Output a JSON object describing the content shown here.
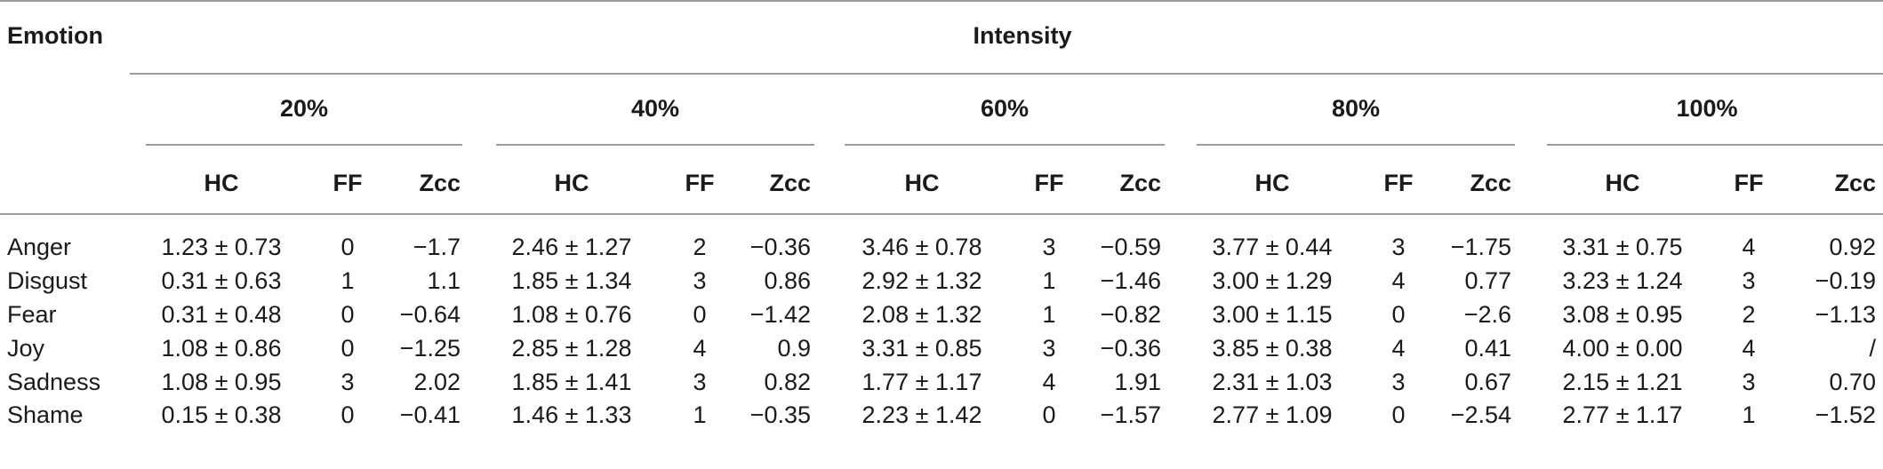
{
  "table": {
    "row_header": "Emotion",
    "super_header": "Intensity",
    "groups": [
      "20%",
      "40%",
      "60%",
      "80%",
      "100%"
    ],
    "sub_headers": [
      "HC",
      "FF",
      "Zcc"
    ],
    "rows": [
      {
        "emotion": "Anger",
        "cells": [
          [
            "1.23 ± 0.73",
            "0",
            "−1.7"
          ],
          [
            "2.46 ± 1.27",
            "2",
            "−0.36"
          ],
          [
            "3.46 ± 0.78",
            "3",
            "−0.59"
          ],
          [
            "3.77 ± 0.44",
            "3",
            "−1.75"
          ],
          [
            "3.31 ± 0.75",
            "4",
            "0.92"
          ]
        ]
      },
      {
        "emotion": "Disgust",
        "cells": [
          [
            "0.31 ± 0.63",
            "1",
            "1.1"
          ],
          [
            "1.85 ± 1.34",
            "3",
            "0.86"
          ],
          [
            "2.92 ± 1.32",
            "1",
            "−1.46"
          ],
          [
            "3.00 ± 1.29",
            "4",
            "0.77"
          ],
          [
            "3.23 ± 1.24",
            "3",
            "−0.19"
          ]
        ]
      },
      {
        "emotion": "Fear",
        "cells": [
          [
            "0.31 ± 0.48",
            "0",
            "−0.64"
          ],
          [
            "1.08 ± 0.76",
            "0",
            "−1.42"
          ],
          [
            "2.08 ± 1.32",
            "1",
            "−0.82"
          ],
          [
            "3.00 ± 1.15",
            "0",
            "−2.6"
          ],
          [
            "3.08 ± 0.95",
            "2",
            "−1.13"
          ]
        ]
      },
      {
        "emotion": "Joy",
        "cells": [
          [
            "1.08 ± 0.86",
            "0",
            "−1.25"
          ],
          [
            "2.85 ± 1.28",
            "4",
            "0.9"
          ],
          [
            "3.31 ± 0.85",
            "3",
            "−0.36"
          ],
          [
            "3.85 ± 0.38",
            "4",
            "0.41"
          ],
          [
            "4.00 ± 0.00",
            "4",
            "/"
          ]
        ]
      },
      {
        "emotion": "Sadness",
        "cells": [
          [
            "1.08 ± 0.95",
            "3",
            "2.02"
          ],
          [
            "1.85 ± 1.41",
            "3",
            "0.82"
          ],
          [
            "1.77 ± 1.17",
            "4",
            "1.91"
          ],
          [
            "2.31 ± 1.03",
            "3",
            "0.67"
          ],
          [
            "2.15 ± 1.21",
            "3",
            "0.70"
          ]
        ]
      },
      {
        "emotion": "Shame",
        "cells": [
          [
            "0.15 ± 0.38",
            "0",
            "−0.41"
          ],
          [
            "1.46 ± 1.33",
            "1",
            "−0.35"
          ],
          [
            "2.23 ± 1.42",
            "0",
            "−1.57"
          ],
          [
            "2.77 ± 1.09",
            "0",
            "−2.54"
          ],
          [
            "2.77 ± 1.17",
            "1",
            "−1.52"
          ]
        ]
      }
    ]
  }
}
